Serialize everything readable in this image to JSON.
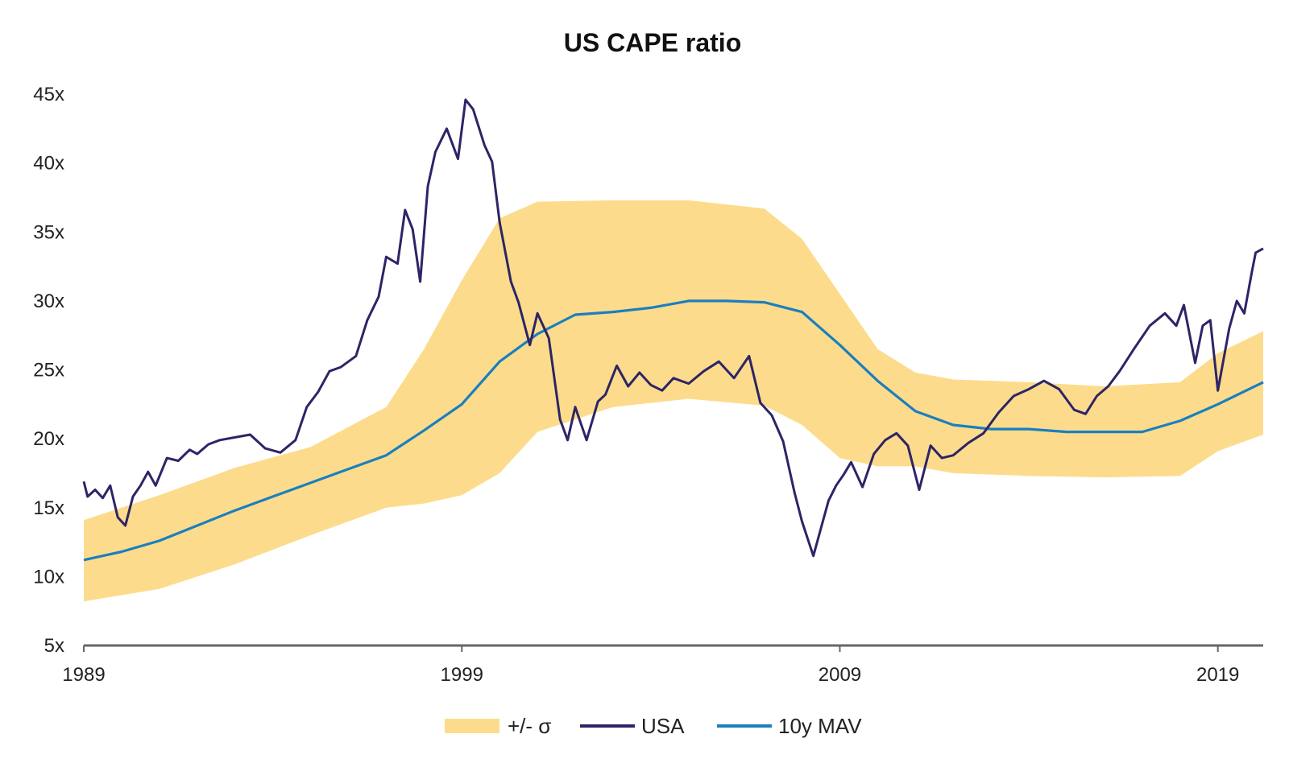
{
  "chart_data": {
    "type": "line",
    "title": "US CAPE ratio",
    "xlabel": "",
    "ylabel": "",
    "xlim": [
      1989,
      2020.2
    ],
    "ylim": [
      5,
      45
    ],
    "x_ticks": [
      1989,
      1999,
      2009,
      2019
    ],
    "x_tick_labels": [
      "1989",
      "1999",
      "2009",
      "2019"
    ],
    "y_ticks": [
      5,
      10,
      15,
      20,
      25,
      30,
      35,
      40,
      45
    ],
    "y_tick_labels": [
      "5x",
      "10x",
      "15x",
      "20x",
      "25x",
      "30x",
      "35x",
      "40x",
      "45x"
    ],
    "grid": false,
    "legend_position": "bottom",
    "colors": {
      "band": "#fcdc8c",
      "usa": "#2e2466",
      "mav": "#1a7fbf",
      "axis": "#666666"
    },
    "band": {
      "name": "+/- σ",
      "x": [
        1989,
        1991,
        1993,
        1995,
        1997,
        1998,
        1999,
        2000,
        2001,
        2003,
        2005,
        2007,
        2008,
        2009,
        2010,
        2011,
        2012,
        2014,
        2016,
        2018,
        2019,
        2020.2
      ],
      "upper": [
        14.1,
        15.9,
        17.9,
        19.4,
        22.3,
        26.5,
        31.5,
        36.0,
        37.2,
        37.3,
        37.3,
        36.7,
        34.5,
        30.5,
        26.5,
        24.8,
        24.3,
        24.1,
        23.8,
        24.1,
        26.2,
        27.8
      ],
      "lower": [
        8.2,
        9.1,
        10.9,
        13.0,
        15.0,
        15.3,
        15.9,
        17.5,
        20.5,
        22.3,
        22.9,
        22.4,
        21.0,
        18.6,
        18.0,
        18.0,
        17.5,
        17.3,
        17.2,
        17.3,
        19.1,
        20.3
      ]
    },
    "series": [
      {
        "name": "USA",
        "x": [
          1989.0,
          1989.1,
          1989.3,
          1989.5,
          1989.7,
          1989.9,
          1990.1,
          1990.3,
          1990.5,
          1990.7,
          1990.9,
          1991.2,
          1991.5,
          1991.8,
          1992.0,
          1992.3,
          1992.6,
          1993.0,
          1993.4,
          1993.8,
          1994.2,
          1994.6,
          1994.9,
          1995.2,
          1995.5,
          1995.8,
          1996.2,
          1996.5,
          1996.8,
          1997.0,
          1997.3,
          1997.5,
          1997.7,
          1997.9,
          1998.1,
          1998.3,
          1998.6,
          1998.9,
          1999.1,
          1999.3,
          1999.6,
          1999.8,
          2000.0,
          2000.3,
          2000.5,
          2000.8,
          2001.0,
          2001.3,
          2001.6,
          2001.8,
          2002.0,
          2002.3,
          2002.6,
          2002.8,
          2003.1,
          2003.4,
          2003.7,
          2004.0,
          2004.3,
          2004.6,
          2005.0,
          2005.4,
          2005.8,
          2006.2,
          2006.6,
          2006.9,
          2007.2,
          2007.5,
          2007.8,
          2008.0,
          2008.3,
          2008.5,
          2008.7,
          2008.9,
          2009.1,
          2009.3,
          2009.6,
          2009.9,
          2010.2,
          2010.5,
          2010.8,
          2011.1,
          2011.4,
          2011.7,
          2012.0,
          2012.4,
          2012.8,
          2013.2,
          2013.6,
          2014.0,
          2014.4,
          2014.8,
          2015.2,
          2015.5,
          2015.8,
          2016.1,
          2016.4,
          2016.8,
          2017.2,
          2017.6,
          2017.9,
          2018.1,
          2018.4,
          2018.6,
          2018.8,
          2019.0,
          2019.3,
          2019.5,
          2019.7,
          2019.9,
          2020.0,
          2020.2
        ],
        "y": [
          16.9,
          15.8,
          16.3,
          15.7,
          16.6,
          14.3,
          13.7,
          15.8,
          16.6,
          17.6,
          16.6,
          18.6,
          18.4,
          19.2,
          18.9,
          19.6,
          19.9,
          20.1,
          20.3,
          19.3,
          19.0,
          19.9,
          22.3,
          23.4,
          24.9,
          25.2,
          26.0,
          28.6,
          30.3,
          33.2,
          32.7,
          36.6,
          35.2,
          31.4,
          38.3,
          40.8,
          42.5,
          40.3,
          44.6,
          43.9,
          41.3,
          40.1,
          35.7,
          31.4,
          29.9,
          26.8,
          29.1,
          27.3,
          21.4,
          19.9,
          22.3,
          19.9,
          22.7,
          23.2,
          25.3,
          23.8,
          24.8,
          23.9,
          23.5,
          24.4,
          24.0,
          24.9,
          25.6,
          24.4,
          26.0,
          22.6,
          21.7,
          19.8,
          16.1,
          14.0,
          11.5,
          13.5,
          15.5,
          16.6,
          17.4,
          18.3,
          16.5,
          18.9,
          19.9,
          20.4,
          19.5,
          16.3,
          19.5,
          18.6,
          18.8,
          19.7,
          20.4,
          21.9,
          23.1,
          23.6,
          24.2,
          23.6,
          22.1,
          21.8,
          23.1,
          23.8,
          24.9,
          26.6,
          28.2,
          29.1,
          28.2,
          29.7,
          25.5,
          28.2,
          28.6,
          23.5,
          28.0,
          30.0,
          29.1,
          32.1,
          33.5,
          33.8
        ]
      },
      {
        "name": "10y MAV",
        "x": [
          1989,
          1990,
          1991,
          1992,
          1993,
          1994,
          1995,
          1996,
          1997,
          1998,
          1999,
          2000,
          2001,
          2002,
          2003,
          2004,
          2005,
          2006,
          2007,
          2008,
          2009,
          2010,
          2011,
          2012,
          2013,
          2014,
          2015,
          2016,
          2017,
          2018,
          2019,
          2020.2
        ],
        "y": [
          11.2,
          11.8,
          12.6,
          13.7,
          14.8,
          15.8,
          16.8,
          17.8,
          18.8,
          20.6,
          22.5,
          25.6,
          27.6,
          29.0,
          29.2,
          29.5,
          30.0,
          30.0,
          29.9,
          29.2,
          26.8,
          24.2,
          22.0,
          21.0,
          20.7,
          20.7,
          20.5,
          20.5,
          20.5,
          21.3,
          22.5,
          24.1
        ]
      }
    ]
  }
}
